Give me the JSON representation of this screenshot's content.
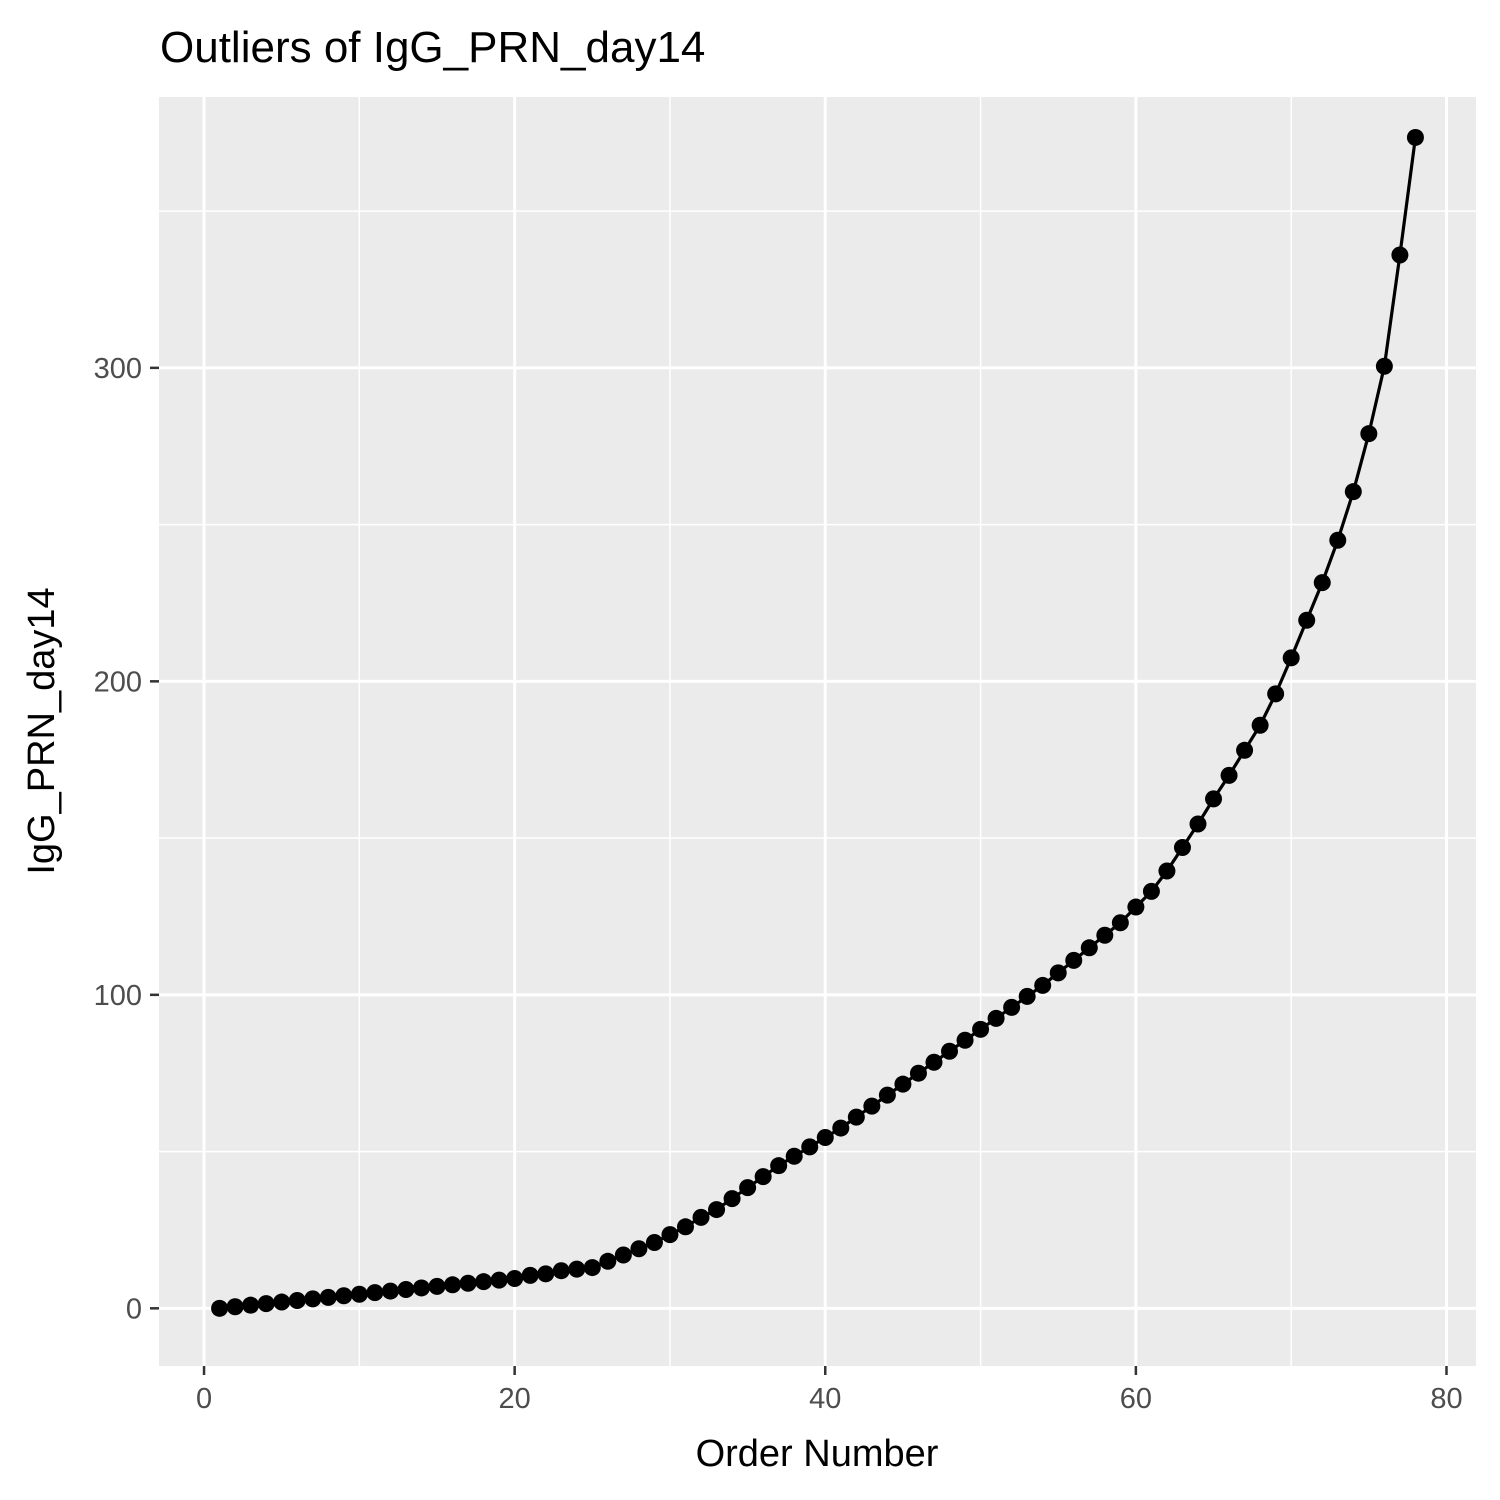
{
  "chart_data": {
    "type": "line",
    "title": "Outliers of IgG_PRN_day14",
    "xlabel": "Order Number",
    "ylabel": "IgG_PRN_day14",
    "xlim": [
      -2.9,
      81.9
    ],
    "ylim": [
      -18.4,
      386.4
    ],
    "x_ticks": [
      0,
      20,
      40,
      60,
      80
    ],
    "y_ticks": [
      0,
      100,
      200,
      300
    ],
    "x_tick_labels": [
      "0",
      "20",
      "40",
      "60",
      "80"
    ],
    "y_tick_labels": [
      "0",
      "100",
      "200",
      "300"
    ],
    "x_minor_ticks": [
      10,
      30,
      50,
      70
    ],
    "y_minor_ticks": [
      50,
      150,
      250,
      350
    ],
    "grid": true,
    "panel_color": "#ebebeb",
    "grid_color": "#ffffff",
    "series_color": "#000000",
    "markers": true,
    "series": [
      {
        "x": [
          1,
          2,
          3,
          4,
          5,
          6,
          7,
          8,
          9,
          10,
          11,
          12,
          13,
          14,
          15,
          16,
          17,
          18,
          19,
          20,
          21,
          22,
          23,
          24,
          25,
          26,
          27,
          28,
          29,
          30,
          31,
          32,
          33,
          34,
          35,
          36,
          37,
          38,
          39,
          40,
          41,
          42,
          43,
          44,
          45,
          46,
          47,
          48,
          49,
          50,
          51,
          52,
          53,
          54,
          55,
          56,
          57,
          58,
          59,
          60,
          61,
          62,
          63,
          64,
          65,
          66,
          67,
          68,
          69,
          70,
          71,
          72,
          73,
          74,
          75,
          76,
          77,
          78
        ],
        "y": [
          0,
          0.5,
          1,
          1.5,
          2,
          2.5,
          3,
          3.5,
          4,
          4.5,
          5,
          5.5,
          6,
          6.5,
          7,
          7.5,
          8,
          8.5,
          9,
          9.5,
          10.5,
          11,
          12,
          12.5,
          13,
          15,
          17,
          19,
          21,
          23.5,
          26,
          29,
          31.5,
          35,
          38.5,
          42,
          45.5,
          48.5,
          51.5,
          54.5,
          57.5,
          61,
          64.5,
          68,
          71.5,
          75,
          78.5,
          82,
          85.5,
          89,
          92.5,
          96,
          99.5,
          103,
          107,
          111,
          115,
          119,
          123,
          128,
          133,
          139.5,
          147,
          154.5,
          162.5,
          170,
          178,
          186,
          196,
          207.5,
          219.5,
          231.5,
          245,
          260.5,
          279,
          300.5,
          336,
          373.5
        ]
      }
    ]
  }
}
